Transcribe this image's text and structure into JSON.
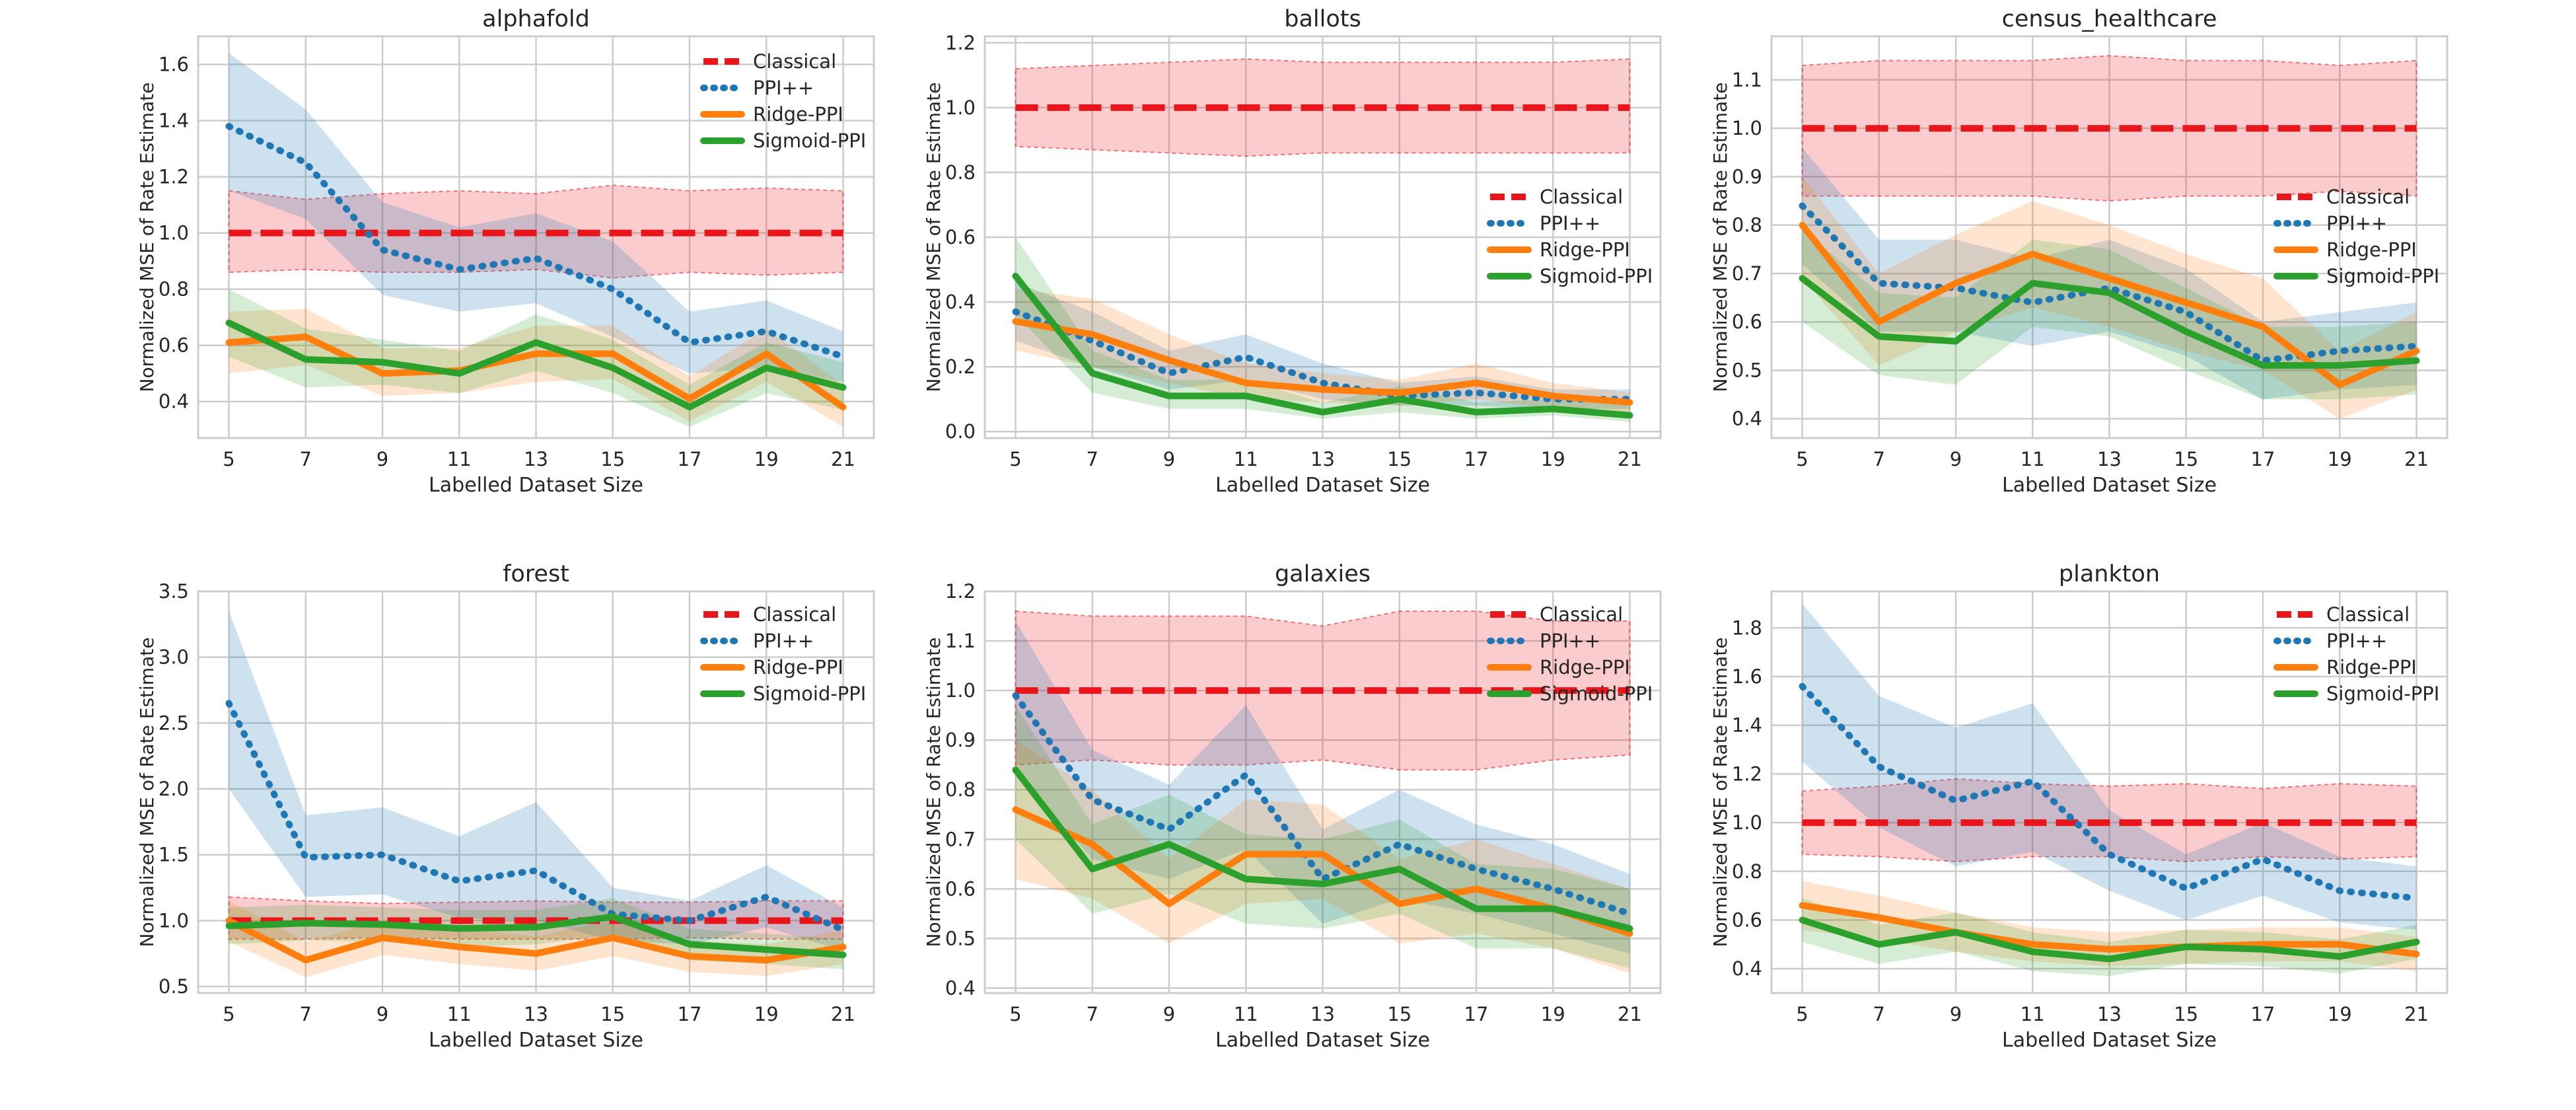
{
  "figure": {
    "series_names": [
      "Classical",
      "PPI++",
      "Ridge-PPI",
      "Sigmoid-PPI"
    ],
    "colors": {
      "Classical": "#e8151b",
      "PPI++": "#1f77b4",
      "Ridge-PPI": "#ff7f0e",
      "Sigmoid-PPI": "#2ca02c",
      "grid": "#cccccc",
      "axis": "#cccccc",
      "text": "#262626"
    }
  },
  "chart_data": [
    {
      "type": "line",
      "title": "alphafold",
      "xlabel": "Labelled Dataset Size",
      "ylabel": "Normalized MSE of Rate Estimate",
      "x": [
        5,
        7,
        9,
        11,
        13,
        15,
        17,
        19,
        21
      ],
      "xlim": [
        4.2,
        21.8
      ],
      "ylim": [
        0.27,
        1.7
      ],
      "yticks": [
        0.4,
        0.6,
        0.8,
        1.0,
        1.2,
        1.4,
        1.6
      ],
      "ytick_labels": [
        "0.4",
        "0.6",
        "0.8",
        "1.0",
        "1.2",
        "1.4",
        "1.6"
      ],
      "legend": "upper-right",
      "series": [
        {
          "name": "Classical",
          "values": [
            1.0,
            1.0,
            1.0,
            1.0,
            1.0,
            1.0,
            1.0,
            1.0,
            1.0
          ],
          "lower": [
            0.86,
            0.87,
            0.86,
            0.86,
            0.87,
            0.84,
            0.86,
            0.85,
            0.86
          ],
          "upper": [
            1.15,
            1.12,
            1.14,
            1.15,
            1.14,
            1.17,
            1.15,
            1.16,
            1.15
          ]
        },
        {
          "name": "PPI++",
          "values": [
            1.38,
            1.25,
            0.94,
            0.87,
            0.91,
            0.8,
            0.61,
            0.65,
            0.56
          ],
          "lower": [
            1.15,
            1.05,
            0.78,
            0.72,
            0.75,
            0.63,
            0.5,
            0.52,
            0.47
          ],
          "upper": [
            1.64,
            1.44,
            1.11,
            1.02,
            1.07,
            0.97,
            0.72,
            0.76,
            0.65
          ]
        },
        {
          "name": "Ridge-PPI",
          "values": [
            0.61,
            0.63,
            0.5,
            0.51,
            0.57,
            0.57,
            0.41,
            0.57,
            0.38
          ],
          "lower": [
            0.5,
            0.53,
            0.42,
            0.43,
            0.47,
            0.48,
            0.33,
            0.47,
            0.31
          ],
          "upper": [
            0.72,
            0.73,
            0.59,
            0.59,
            0.67,
            0.67,
            0.49,
            0.66,
            0.46
          ]
        },
        {
          "name": "Sigmoid-PPI",
          "values": [
            0.68,
            0.55,
            0.54,
            0.5,
            0.61,
            0.52,
            0.38,
            0.52,
            0.45
          ],
          "lower": [
            0.56,
            0.45,
            0.46,
            0.43,
            0.51,
            0.43,
            0.31,
            0.43,
            0.37
          ],
          "upper": [
            0.8,
            0.66,
            0.62,
            0.58,
            0.71,
            0.62,
            0.46,
            0.61,
            0.54
          ]
        }
      ]
    },
    {
      "type": "line",
      "title": "ballots",
      "xlabel": "Labelled Dataset Size",
      "ylabel": "Normalized MSE of Rate Estimate",
      "x": [
        5,
        7,
        9,
        11,
        13,
        15,
        17,
        19,
        21
      ],
      "xlim": [
        4.2,
        21.8
      ],
      "ylim": [
        -0.02,
        1.22
      ],
      "yticks": [
        0.0,
        0.2,
        0.4,
        0.6,
        0.8,
        1.0,
        1.2
      ],
      "ytick_labels": [
        "0.0",
        "0.2",
        "0.4",
        "0.6",
        "0.8",
        "1.0",
        "1.2"
      ],
      "legend": "center-right",
      "series": [
        {
          "name": "Classical",
          "values": [
            1.0,
            1.0,
            1.0,
            1.0,
            1.0,
            1.0,
            1.0,
            1.0,
            1.0
          ],
          "lower": [
            0.88,
            0.87,
            0.86,
            0.85,
            0.86,
            0.86,
            0.86,
            0.86,
            0.86
          ],
          "upper": [
            1.12,
            1.13,
            1.14,
            1.15,
            1.14,
            1.14,
            1.14,
            1.14,
            1.15
          ]
        },
        {
          "name": "PPI++",
          "values": [
            0.37,
            0.28,
            0.18,
            0.23,
            0.15,
            0.11,
            0.12,
            0.1,
            0.1
          ],
          "lower": [
            0.28,
            0.2,
            0.13,
            0.16,
            0.1,
            0.08,
            0.08,
            0.07,
            0.07
          ],
          "upper": [
            0.46,
            0.37,
            0.25,
            0.3,
            0.21,
            0.15,
            0.17,
            0.13,
            0.13
          ]
        },
        {
          "name": "Ridge-PPI",
          "values": [
            0.34,
            0.3,
            0.22,
            0.15,
            0.13,
            0.12,
            0.15,
            0.11,
            0.09
          ],
          "lower": [
            0.25,
            0.2,
            0.15,
            0.1,
            0.09,
            0.08,
            0.1,
            0.07,
            0.06
          ],
          "upper": [
            0.44,
            0.41,
            0.3,
            0.21,
            0.18,
            0.16,
            0.21,
            0.15,
            0.12
          ]
        },
        {
          "name": "Sigmoid-PPI",
          "values": [
            0.48,
            0.18,
            0.11,
            0.11,
            0.06,
            0.1,
            0.06,
            0.07,
            0.05
          ],
          "lower": [
            0.36,
            0.12,
            0.07,
            0.07,
            0.04,
            0.06,
            0.04,
            0.05,
            0.03
          ],
          "upper": [
            0.6,
            0.25,
            0.16,
            0.16,
            0.09,
            0.14,
            0.09,
            0.1,
            0.08
          ]
        }
      ]
    },
    {
      "type": "line",
      "title": "census_healthcare",
      "xlabel": "Labelled Dataset Size",
      "ylabel": "Normalized MSE of Rate Estimate",
      "x": [
        5,
        7,
        9,
        11,
        13,
        15,
        17,
        19,
        21
      ],
      "xlim": [
        4.2,
        21.8
      ],
      "ylim": [
        0.36,
        1.19
      ],
      "yticks": [
        0.4,
        0.5,
        0.6,
        0.7,
        0.8,
        0.9,
        1.0,
        1.1
      ],
      "ytick_labels": [
        "0.4",
        "0.5",
        "0.6",
        "0.7",
        "0.8",
        "0.9",
        "1.0",
        "1.1"
      ],
      "legend": "center-right",
      "series": [
        {
          "name": "Classical",
          "values": [
            1.0,
            1.0,
            1.0,
            1.0,
            1.0,
            1.0,
            1.0,
            1.0,
            1.0
          ],
          "lower": [
            0.86,
            0.86,
            0.86,
            0.86,
            0.85,
            0.86,
            0.86,
            0.87,
            0.86
          ],
          "upper": [
            1.13,
            1.14,
            1.14,
            1.14,
            1.15,
            1.14,
            1.14,
            1.13,
            1.14
          ]
        },
        {
          "name": "PPI++",
          "values": [
            0.84,
            0.68,
            0.67,
            0.64,
            0.67,
            0.62,
            0.52,
            0.54,
            0.55
          ],
          "lower": [
            0.72,
            0.58,
            0.58,
            0.55,
            0.58,
            0.53,
            0.44,
            0.46,
            0.47
          ],
          "upper": [
            0.96,
            0.77,
            0.77,
            0.73,
            0.77,
            0.71,
            0.6,
            0.62,
            0.64
          ]
        },
        {
          "name": "Ridge-PPI",
          "values": [
            0.8,
            0.6,
            0.68,
            0.74,
            0.69,
            0.64,
            0.59,
            0.47,
            0.54
          ],
          "lower": [
            0.69,
            0.51,
            0.58,
            0.63,
            0.59,
            0.54,
            0.5,
            0.4,
            0.46
          ],
          "upper": [
            0.9,
            0.7,
            0.78,
            0.85,
            0.8,
            0.74,
            0.69,
            0.54,
            0.62
          ]
        },
        {
          "name": "Sigmoid-PPI",
          "values": [
            0.69,
            0.57,
            0.56,
            0.68,
            0.66,
            0.58,
            0.51,
            0.51,
            0.52
          ],
          "lower": [
            0.6,
            0.49,
            0.47,
            0.59,
            0.57,
            0.5,
            0.44,
            0.44,
            0.45
          ],
          "upper": [
            0.79,
            0.66,
            0.65,
            0.77,
            0.75,
            0.67,
            0.59,
            0.59,
            0.6
          ]
        }
      ]
    },
    {
      "type": "line",
      "title": "forest",
      "xlabel": "Labelled Dataset Size",
      "ylabel": "Normalized MSE of Rate Estimate",
      "x": [
        5,
        7,
        9,
        11,
        13,
        15,
        17,
        19,
        21
      ],
      "xlim": [
        4.2,
        21.8
      ],
      "ylim": [
        0.45,
        3.5
      ],
      "yticks": [
        0.5,
        1.0,
        1.5,
        2.0,
        2.5,
        3.0,
        3.5
      ],
      "ytick_labels": [
        "0.5",
        "1.0",
        "1.5",
        "2.0",
        "2.5",
        "3.0",
        "3.5"
      ],
      "legend": "upper-right",
      "series": [
        {
          "name": "Classical",
          "values": [
            1.0,
            1.0,
            1.0,
            1.0,
            1.0,
            1.0,
            1.0,
            1.0,
            1.0
          ],
          "lower": [
            0.86,
            0.86,
            0.87,
            0.86,
            0.86,
            0.86,
            0.87,
            0.86,
            0.86
          ],
          "upper": [
            1.18,
            1.15,
            1.13,
            1.14,
            1.15,
            1.14,
            1.14,
            1.15,
            1.15
          ]
        },
        {
          "name": "PPI++",
          "values": [
            2.65,
            1.48,
            1.5,
            1.3,
            1.38,
            1.05,
            1.0,
            1.18,
            0.93
          ],
          "lower": [
            2.0,
            1.18,
            1.2,
            1.02,
            1.0,
            0.85,
            0.82,
            0.95,
            0.77
          ],
          "upper": [
            3.35,
            1.8,
            1.86,
            1.64,
            1.9,
            1.25,
            1.15,
            1.42,
            1.1
          ]
        },
        {
          "name": "Ridge-PPI",
          "values": [
            1.0,
            0.7,
            0.87,
            0.8,
            0.75,
            0.87,
            0.73,
            0.7,
            0.8
          ],
          "lower": [
            0.84,
            0.57,
            0.74,
            0.67,
            0.62,
            0.73,
            0.61,
            0.58,
            0.67
          ],
          "upper": [
            1.15,
            0.84,
            1.0,
            0.94,
            0.88,
            1.0,
            0.85,
            0.82,
            0.93
          ]
        },
        {
          "name": "Sigmoid-PPI",
          "values": [
            0.96,
            0.98,
            0.97,
            0.94,
            0.95,
            1.03,
            0.82,
            0.78,
            0.74
          ],
          "lower": [
            0.82,
            0.85,
            0.84,
            0.8,
            0.82,
            0.89,
            0.7,
            0.67,
            0.63
          ],
          "upper": [
            1.1,
            1.12,
            1.1,
            1.08,
            1.08,
            1.17,
            0.94,
            0.9,
            0.86
          ]
        }
      ]
    },
    {
      "type": "line",
      "title": "galaxies",
      "xlabel": "Labelled Dataset Size",
      "ylabel": "Normalized MSE of Rate Estimate",
      "x": [
        5,
        7,
        9,
        11,
        13,
        15,
        17,
        19,
        21
      ],
      "xlim": [
        4.2,
        21.8
      ],
      "ylim": [
        0.39,
        1.2
      ],
      "yticks": [
        0.4,
        0.5,
        0.6,
        0.7,
        0.8,
        0.9,
        1.0,
        1.1,
        1.2
      ],
      "ytick_labels": [
        "0.4",
        "0.5",
        "0.6",
        "0.7",
        "0.8",
        "0.9",
        "1.0",
        "1.1",
        "1.2"
      ],
      "legend": "upper-right",
      "series": [
        {
          "name": "Classical",
          "values": [
            1.0,
            1.0,
            1.0,
            1.0,
            1.0,
            1.0,
            1.0,
            1.0,
            1.0
          ],
          "lower": [
            0.85,
            0.86,
            0.85,
            0.85,
            0.86,
            0.84,
            0.84,
            0.86,
            0.87
          ],
          "upper": [
            1.16,
            1.15,
            1.15,
            1.15,
            1.13,
            1.16,
            1.16,
            1.14,
            1.14
          ]
        },
        {
          "name": "PPI++",
          "values": [
            0.99,
            0.78,
            0.72,
            0.83,
            0.62,
            0.69,
            0.64,
            0.6,
            0.55
          ],
          "lower": [
            0.84,
            0.66,
            0.62,
            0.68,
            0.53,
            0.58,
            0.55,
            0.51,
            0.47
          ],
          "upper": [
            1.14,
            0.88,
            0.81,
            0.97,
            0.72,
            0.8,
            0.73,
            0.69,
            0.63
          ]
        },
        {
          "name": "Ridge-PPI",
          "values": [
            0.76,
            0.69,
            0.57,
            0.67,
            0.67,
            0.57,
            0.6,
            0.56,
            0.51
          ],
          "lower": [
            0.62,
            0.58,
            0.49,
            0.57,
            0.58,
            0.49,
            0.51,
            0.48,
            0.43
          ],
          "upper": [
            0.9,
            0.8,
            0.66,
            0.78,
            0.77,
            0.66,
            0.7,
            0.65,
            0.6
          ]
        },
        {
          "name": "Sigmoid-PPI",
          "values": [
            0.84,
            0.64,
            0.69,
            0.62,
            0.61,
            0.64,
            0.56,
            0.56,
            0.52
          ],
          "lower": [
            0.7,
            0.55,
            0.59,
            0.53,
            0.52,
            0.55,
            0.48,
            0.48,
            0.44
          ],
          "upper": [
            0.97,
            0.73,
            0.79,
            0.71,
            0.7,
            0.74,
            0.65,
            0.64,
            0.6
          ]
        }
      ]
    },
    {
      "type": "line",
      "title": "plankton",
      "xlabel": "Labelled Dataset Size",
      "ylabel": "Normalized MSE of Rate Estimate",
      "x": [
        5,
        7,
        9,
        11,
        13,
        15,
        17,
        19,
        21
      ],
      "xlim": [
        4.2,
        21.8
      ],
      "ylim": [
        0.3,
        1.95
      ],
      "yticks": [
        0.4,
        0.6,
        0.8,
        1.0,
        1.2,
        1.4,
        1.6,
        1.8
      ],
      "ytick_labels": [
        "0.4",
        "0.6",
        "0.8",
        "1.0",
        "1.2",
        "1.4",
        "1.6",
        "1.8"
      ],
      "legend": "upper-right",
      "series": [
        {
          "name": "Classical",
          "values": [
            1.0,
            1.0,
            1.0,
            1.0,
            1.0,
            1.0,
            1.0,
            1.0,
            1.0
          ],
          "lower": [
            0.87,
            0.86,
            0.84,
            0.86,
            0.86,
            0.84,
            0.86,
            0.85,
            0.86
          ],
          "upper": [
            1.13,
            1.15,
            1.18,
            1.16,
            1.15,
            1.16,
            1.14,
            1.16,
            1.15
          ]
        },
        {
          "name": "PPI++",
          "values": [
            1.56,
            1.23,
            1.09,
            1.17,
            0.87,
            0.73,
            0.85,
            0.72,
            0.69
          ],
          "lower": [
            1.25,
            0.98,
            0.82,
            0.88,
            0.72,
            0.6,
            0.7,
            0.59,
            0.56
          ],
          "upper": [
            1.9,
            1.52,
            1.39,
            1.49,
            1.05,
            0.87,
            1.0,
            0.86,
            0.82
          ]
        },
        {
          "name": "Ridge-PPI",
          "values": [
            0.66,
            0.61,
            0.55,
            0.5,
            0.48,
            0.49,
            0.5,
            0.5,
            0.46
          ],
          "lower": [
            0.56,
            0.52,
            0.47,
            0.43,
            0.41,
            0.42,
            0.43,
            0.43,
            0.39
          ],
          "upper": [
            0.76,
            0.7,
            0.63,
            0.57,
            0.55,
            0.56,
            0.57,
            0.57,
            0.53
          ]
        },
        {
          "name": "Sigmoid-PPI",
          "values": [
            0.6,
            0.5,
            0.55,
            0.47,
            0.44,
            0.49,
            0.48,
            0.45,
            0.51
          ],
          "lower": [
            0.51,
            0.42,
            0.47,
            0.39,
            0.37,
            0.42,
            0.41,
            0.38,
            0.44
          ],
          "upper": [
            0.69,
            0.58,
            0.63,
            0.55,
            0.51,
            0.56,
            0.55,
            0.52,
            0.58
          ]
        }
      ]
    }
  ]
}
